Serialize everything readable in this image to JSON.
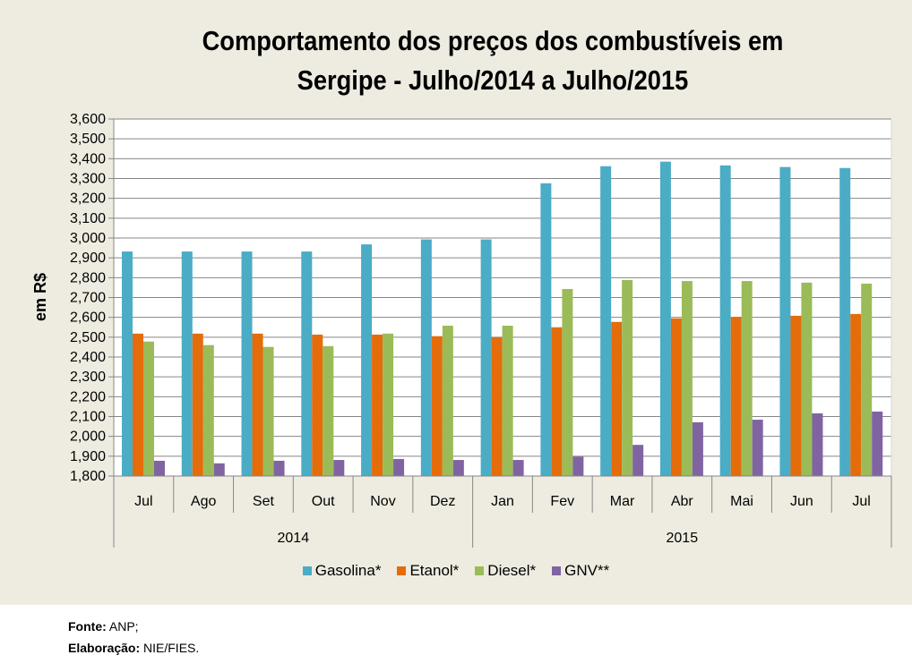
{
  "footer": {
    "source_label": "Fonte:",
    "source_value": "ANP;",
    "credit_label": "Elaboração:",
    "credit_value": "NIE/FIES."
  },
  "chart_data": {
    "type": "bar",
    "title_line1": "Comportamento dos preços dos combustíveis em",
    "title_line2": "Sergipe - Julho/2014 a Julho/2015",
    "xlabel": "",
    "ylabel": "em R$",
    "ylim": [
      1800,
      3600
    ],
    "ytick_step": 100,
    "yticks": [
      "1,800",
      "1,900",
      "2,000",
      "2,100",
      "2,200",
      "2,300",
      "2,400",
      "2,500",
      "2,600",
      "2,700",
      "2,800",
      "2,900",
      "3,000",
      "3,100",
      "3,200",
      "3,300",
      "3,400",
      "3,500",
      "3,600"
    ],
    "grid": true,
    "legend_position": "bottom",
    "categories": [
      "Jul",
      "Ago",
      "Set",
      "Out",
      "Nov",
      "Dez",
      "Jan",
      "Fev",
      "Mar",
      "Abr",
      "Mai",
      "Jun",
      "Jul"
    ],
    "groups": [
      {
        "label": "2014",
        "count": 6
      },
      {
        "label": "2015",
        "count": 7
      }
    ],
    "series": [
      {
        "name": "Gasolina*",
        "color": "#4bacc6",
        "values": [
          2932,
          2932,
          2932,
          2932,
          2968,
          2993,
          2993,
          3276,
          3362,
          3385,
          3366,
          3358,
          3353
        ]
      },
      {
        "name": "Etanol*",
        "color": "#e46c0a",
        "values": [
          2518,
          2518,
          2518,
          2513,
          2513,
          2505,
          2500,
          2550,
          2577,
          2595,
          2602,
          2608,
          2617
        ]
      },
      {
        "name": "Diesel*",
        "color": "#9bbb59",
        "values": [
          2478,
          2460,
          2451,
          2455,
          2518,
          2558,
          2558,
          2743,
          2788,
          2783,
          2783,
          2775,
          2770
        ]
      },
      {
        "name": "GNV**",
        "color": "#8064a2",
        "values": [
          1877,
          1864,
          1877,
          1881,
          1886,
          1881,
          1881,
          1898,
          1957,
          2071,
          2084,
          2116,
          2125
        ]
      }
    ]
  }
}
